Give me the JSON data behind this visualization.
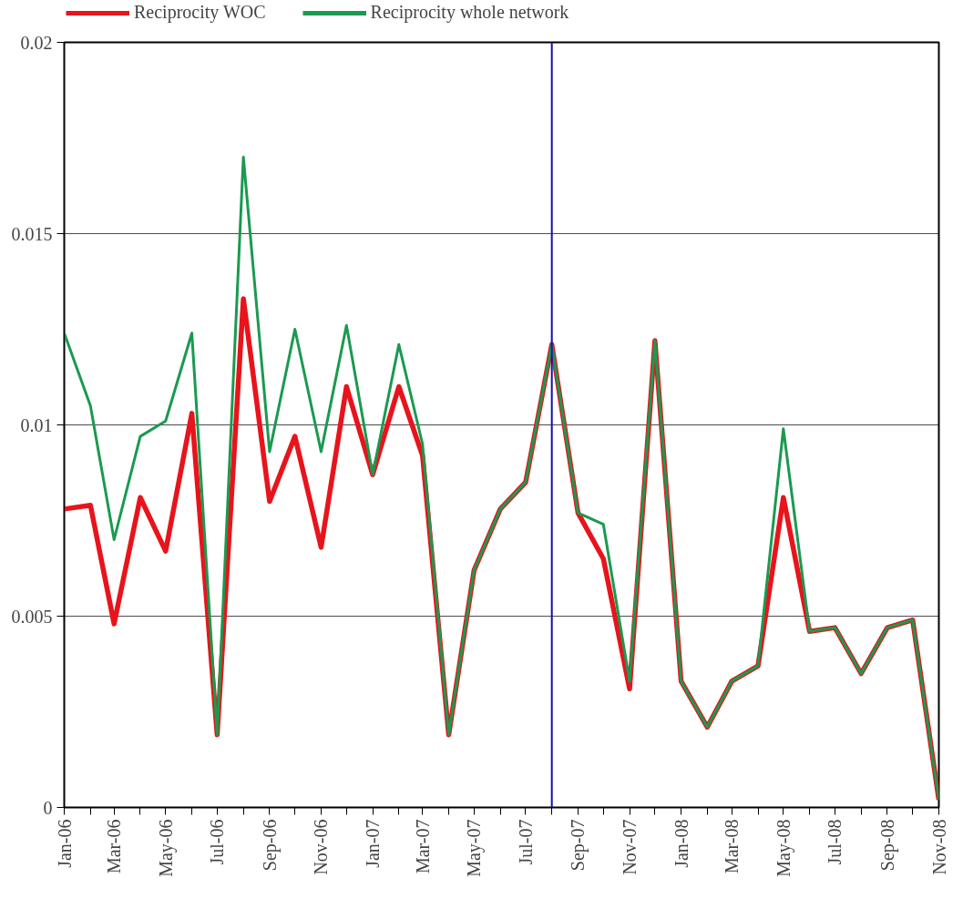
{
  "chart_data": {
    "type": "line",
    "x": [
      "2006-01",
      "2006-02",
      "2006-03",
      "2006-04",
      "2006-05",
      "2006-06",
      "2006-07",
      "2006-08",
      "2006-09",
      "2006-10",
      "2006-11",
      "2006-12",
      "2007-01",
      "2007-02",
      "2007-03",
      "2007-04",
      "2007-05",
      "2007-06",
      "2007-07",
      "2007-08",
      "2007-09",
      "2007-10",
      "2007-11",
      "2007-12",
      "2008-01",
      "2008-02",
      "2008-03",
      "2008-04",
      "2008-05",
      "2008-06",
      "2008-07",
      "2008-08",
      "2008-09",
      "2008-10",
      "2008-11"
    ],
    "series": [
      {
        "name": "Reciprocity WOC",
        "color": "#e8141c",
        "values": [
          0.0078,
          0.0079,
          0.0048,
          0.0081,
          0.0067,
          0.0103,
          0.0019,
          0.0133,
          0.008,
          0.0097,
          0.0068,
          0.011,
          0.0087,
          0.011,
          0.0092,
          0.0019,
          0.0062,
          0.0078,
          0.0085,
          0.0121,
          0.0077,
          0.0065,
          0.0031,
          0.0122,
          0.0033,
          0.0021,
          0.0033,
          0.0037,
          0.0081,
          0.0046,
          0.0047,
          0.0035,
          0.0047,
          0.0049,
          0.0002
        ]
      },
      {
        "name": "Reciprocity whole network",
        "color": "#1a9a50",
        "values": [
          0.0124,
          0.0105,
          0.007,
          0.0097,
          0.0101,
          0.0124,
          0.0019,
          0.017,
          0.0093,
          0.0125,
          0.0093,
          0.0126,
          0.0087,
          0.0121,
          0.0095,
          0.0019,
          0.0062,
          0.0078,
          0.0085,
          0.0121,
          0.0077,
          0.0074,
          0.0033,
          0.0122,
          0.0033,
          0.0021,
          0.0033,
          0.0037,
          0.0099,
          0.0046,
          0.0047,
          0.0035,
          0.0047,
          0.0049,
          0.0002
        ]
      }
    ],
    "xlim": [
      "2006-01",
      "2008-11"
    ],
    "xticks": [
      {
        "value": "2006-01",
        "label": "Jan-06"
      },
      {
        "value": "2006-02",
        "label": null
      },
      {
        "value": "2006-03",
        "label": "Mar-06"
      },
      {
        "value": "2006-04",
        "label": null
      },
      {
        "value": "2006-05",
        "label": "May-06"
      },
      {
        "value": "2006-06",
        "label": null
      },
      {
        "value": "2006-07",
        "label": "Jul-06"
      },
      {
        "value": "2006-08",
        "label": null
      },
      {
        "value": "2006-09",
        "label": "Sep-06"
      },
      {
        "value": "2006-10",
        "label": null
      },
      {
        "value": "2006-11",
        "label": "Nov-06"
      },
      {
        "value": "2006-12",
        "label": null
      },
      {
        "value": "2007-01",
        "label": "Jan-07"
      },
      {
        "value": "2007-02",
        "label": null
      },
      {
        "value": "2007-03",
        "label": "Mar-07"
      },
      {
        "value": "2007-04",
        "label": null
      },
      {
        "value": "2007-05",
        "label": "May-07"
      },
      {
        "value": "2007-06",
        "label": null
      },
      {
        "value": "2007-07",
        "label": "Jul-07"
      },
      {
        "value": "2007-08",
        "label": null
      },
      {
        "value": "2007-09",
        "label": "Sep-07"
      },
      {
        "value": "2007-10",
        "label": null
      },
      {
        "value": "2007-11",
        "label": "Nov-07"
      },
      {
        "value": "2007-12",
        "label": null
      },
      {
        "value": "2008-01",
        "label": "Jan-08"
      },
      {
        "value": "2008-02",
        "label": null
      },
      {
        "value": "2008-03",
        "label": "Mar-08"
      },
      {
        "value": "2008-04",
        "label": null
      },
      {
        "value": "2008-05",
        "label": "May-08"
      },
      {
        "value": "2008-06",
        "label": null
      },
      {
        "value": "2008-07",
        "label": "Jul-08"
      },
      {
        "value": "2008-08",
        "label": null
      },
      {
        "value": "2008-09",
        "label": "Sep-08"
      },
      {
        "value": "2008-10",
        "label": null
      },
      {
        "value": "2008-11",
        "label": "Nov-08"
      }
    ],
    "ylim": [
      0,
      0.02
    ],
    "yticks": [
      0,
      0.005,
      0.01,
      0.015,
      0.02
    ],
    "grid": "y",
    "legend": "top",
    "marker": "none",
    "line_style": "solid",
    "ref_lines": [
      {
        "axis": "x",
        "value": "2007-08",
        "color": "#1010b0"
      }
    ]
  }
}
